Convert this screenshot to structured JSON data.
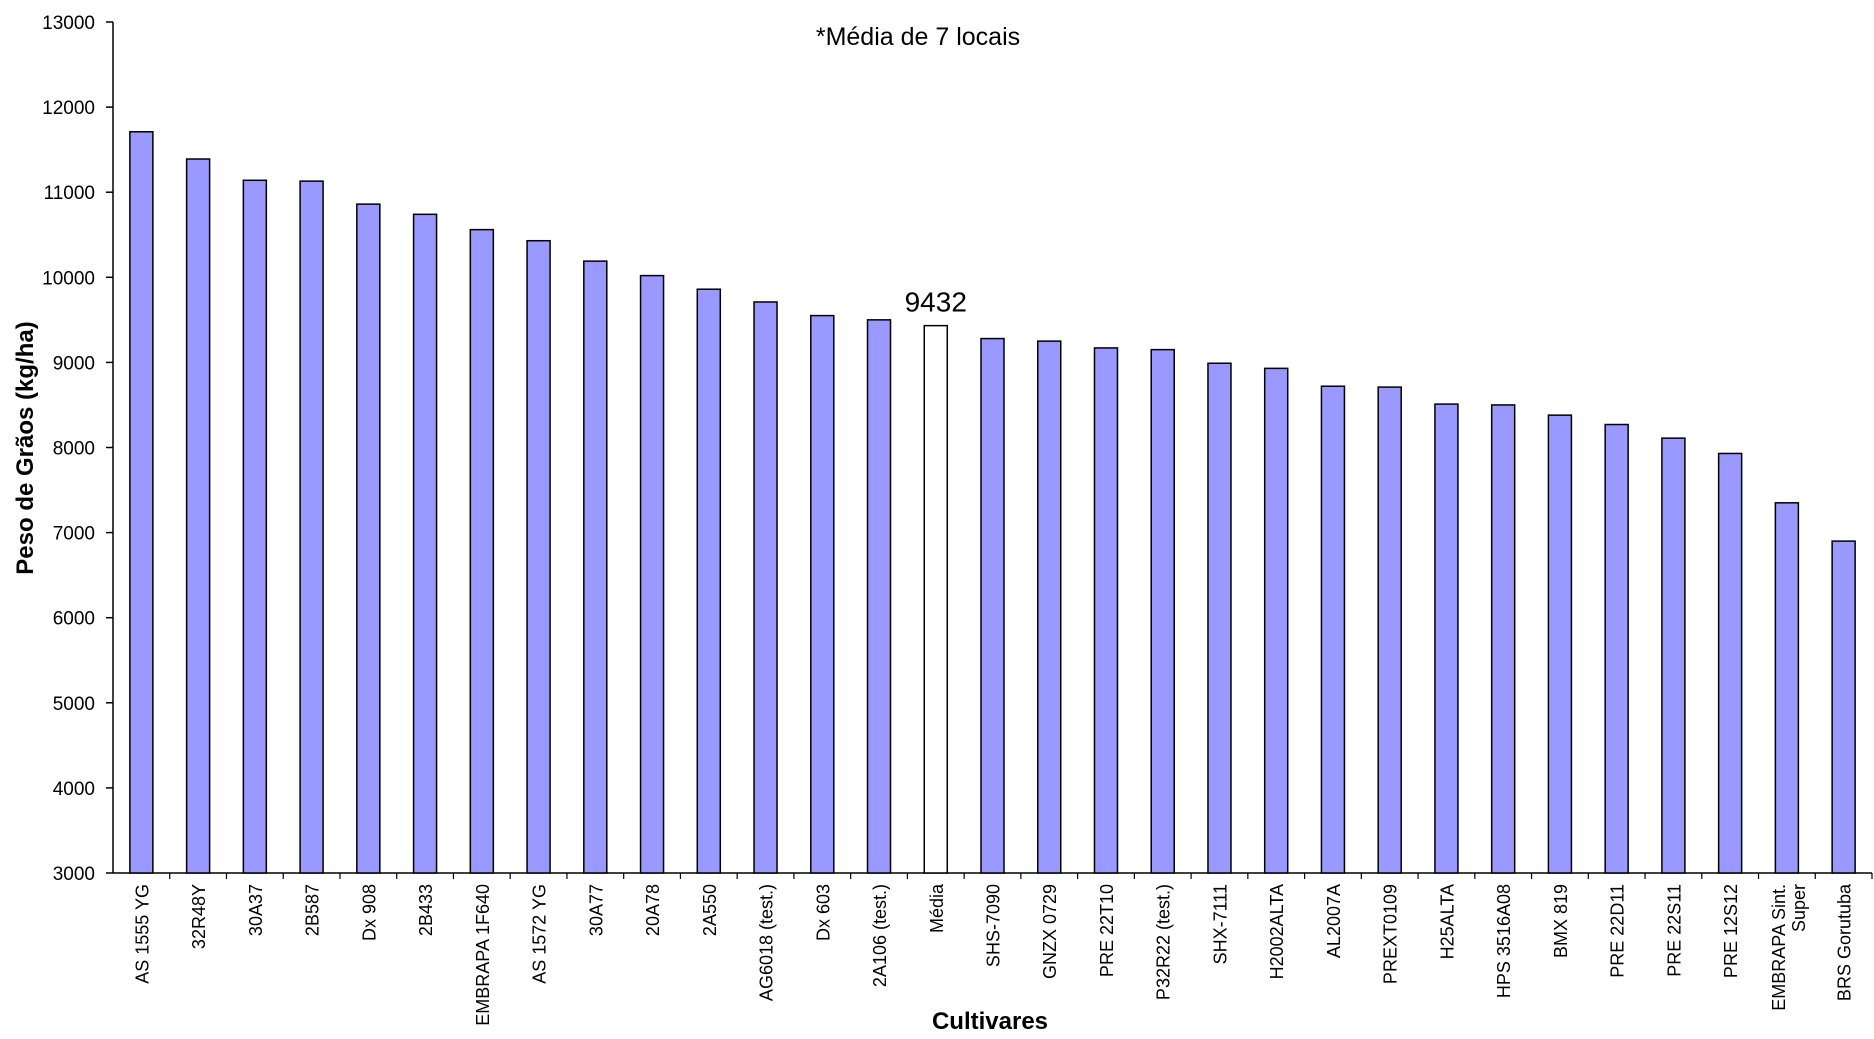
{
  "chart_data": {
    "type": "bar",
    "title": "*Média de 7 locais",
    "xlabel": "Cultivares",
    "ylabel": "Peso de Grãos (kg/ha)",
    "ylim": [
      3000,
      13000
    ],
    "yticks": [
      3000,
      4000,
      5000,
      6000,
      7000,
      8000,
      9000,
      10000,
      11000,
      12000,
      13000
    ],
    "grid": false,
    "legend": "none",
    "categories": [
      "AS 1555 YG",
      "32R48Y",
      "30A37",
      "2B587",
      "Dx 908",
      "2B433",
      "EMBRAPA 1F640",
      "AS 1572 YG",
      "30A77",
      "20A78",
      "2A550",
      "AG6018 (test.)",
      "Dx 603",
      "2A106 (test.)",
      "Média",
      "SHS-7090",
      "GNZX 0729",
      "PRE 22T10",
      "P32R22 (test.)",
      "SHX-7111",
      "H2002ALTA",
      "AL2007A",
      "PREXT0109",
      "H25ALTA",
      "HPS 3516A08",
      "BMX 819",
      "PRE 22D11",
      "PRE 22S11",
      "PRE 12S12",
      "EMBRAPA Sint. Super",
      "BRS Gorutuba"
    ],
    "values": [
      11710,
      11390,
      11140,
      11130,
      10860,
      10740,
      10560,
      10430,
      10190,
      10020,
      9860,
      9710,
      9550,
      9500,
      9432,
      9280,
      9250,
      9170,
      9150,
      8990,
      8930,
      8720,
      8710,
      8510,
      8500,
      8380,
      8270,
      8110,
      7930,
      7350,
      6900
    ],
    "highlight": {
      "category": "Média",
      "label": "9432"
    },
    "colors": {
      "bar": "#9999ff",
      "highlight_bar": "#ffffff",
      "stroke": "#000000"
    }
  }
}
